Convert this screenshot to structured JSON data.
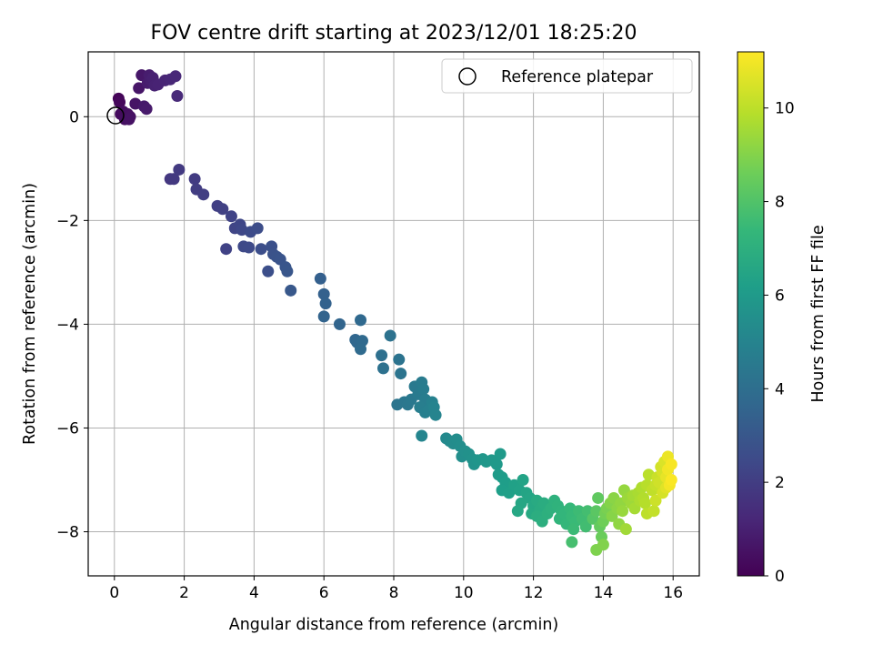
{
  "chart_data": {
    "type": "scatter",
    "title": "FOV centre drift starting at 2023/12/01 18:25:20",
    "xlabel": "Angular distance from reference (arcmin)",
    "ylabel": "Rotation from reference (arcmin)",
    "xlim": [
      -0.75,
      16.75
    ],
    "ylim": [
      -8.85,
      1.25
    ],
    "xticks": [
      0,
      2,
      4,
      6,
      8,
      10,
      12,
      14,
      16
    ],
    "yticks": [
      -8,
      -6,
      -4,
      -2,
      0
    ],
    "grid": true,
    "legend": {
      "placement": "top-right",
      "entries": [
        {
          "label": "Reference platepar",
          "marker": "open-circle"
        }
      ]
    },
    "reference_point": {
      "x": 0,
      "y": 0
    },
    "colorbar": {
      "label": "Hours from first FF file",
      "range": [
        0,
        11.2
      ],
      "ticks": [
        0,
        2,
        4,
        6,
        8,
        10
      ],
      "colormap": "viridis",
      "colors": [
        "#440154",
        "#482878",
        "#3e4a89",
        "#31688e",
        "#26828e",
        "#1f9e89",
        "#35b779",
        "#6ece58",
        "#b5de2b",
        "#fde725"
      ]
    },
    "series": [
      {
        "color_by": "hours",
        "points": [
          [
            0.12,
            0.35,
            0.1
          ],
          [
            0.15,
            0.28,
            0.2
          ],
          [
            0.18,
            0.05,
            0.3
          ],
          [
            0.25,
            0.1,
            0.35
          ],
          [
            0.3,
            -0.05,
            0.4
          ],
          [
            0.38,
            0.05,
            0.45
          ],
          [
            0.45,
            0.0,
            0.5
          ],
          [
            0.42,
            -0.05,
            0.55
          ],
          [
            0.6,
            0.25,
            0.6
          ],
          [
            0.7,
            0.55,
            0.65
          ],
          [
            0.78,
            0.8,
            0.7
          ],
          [
            0.85,
            0.2,
            0.75
          ],
          [
            0.92,
            0.15,
            0.8
          ],
          [
            0.95,
            0.65,
            0.85
          ],
          [
            1.0,
            0.8,
            0.9
          ],
          [
            1.05,
            0.7,
            0.95
          ],
          [
            1.1,
            0.75,
            1.0
          ],
          [
            1.15,
            0.6,
            1.05
          ],
          [
            1.25,
            0.62,
            1.1
          ],
          [
            1.45,
            0.7,
            1.15
          ],
          [
            1.6,
            0.72,
            1.2
          ],
          [
            1.75,
            0.78,
            1.25
          ],
          [
            1.8,
            0.4,
            1.3
          ],
          [
            1.6,
            -1.2,
            1.8
          ],
          [
            1.7,
            -1.2,
            1.85
          ],
          [
            1.85,
            -1.02,
            1.9
          ],
          [
            2.3,
            -1.2,
            1.95
          ],
          [
            2.35,
            -1.4,
            2.0
          ],
          [
            2.55,
            -1.5,
            2.05
          ],
          [
            2.95,
            -1.72,
            2.1
          ],
          [
            3.1,
            -1.78,
            2.15
          ],
          [
            3.2,
            -2.55,
            2.2
          ],
          [
            3.35,
            -1.92,
            2.25
          ],
          [
            3.45,
            -2.15,
            2.3
          ],
          [
            3.6,
            -2.08,
            2.35
          ],
          [
            3.65,
            -2.18,
            2.4
          ],
          [
            3.7,
            -2.5,
            2.45
          ],
          [
            3.85,
            -2.52,
            2.5
          ],
          [
            3.9,
            -2.22,
            2.55
          ],
          [
            4.1,
            -2.15,
            2.6
          ],
          [
            4.2,
            -2.55,
            2.65
          ],
          [
            4.4,
            -2.98,
            2.7
          ],
          [
            4.5,
            -2.5,
            2.75
          ],
          [
            4.55,
            -2.65,
            2.8
          ],
          [
            4.65,
            -2.7,
            2.85
          ],
          [
            4.75,
            -2.75,
            2.9
          ],
          [
            4.9,
            -2.9,
            2.95
          ],
          [
            4.95,
            -2.98,
            3.0
          ],
          [
            5.05,
            -3.35,
            3.05
          ],
          [
            5.9,
            -3.12,
            3.4
          ],
          [
            6.0,
            -3.42,
            3.45
          ],
          [
            6.05,
            -3.6,
            3.5
          ],
          [
            6.0,
            -3.85,
            3.55
          ],
          [
            6.45,
            -4.0,
            3.6
          ],
          [
            6.9,
            -4.3,
            3.7
          ],
          [
            6.95,
            -4.35,
            3.75
          ],
          [
            7.05,
            -3.92,
            3.8
          ],
          [
            7.1,
            -4.32,
            3.85
          ],
          [
            7.05,
            -4.48,
            3.9
          ],
          [
            7.65,
            -4.6,
            4.1
          ],
          [
            7.7,
            -4.85,
            4.15
          ],
          [
            7.9,
            -4.22,
            4.2
          ],
          [
            8.15,
            -4.68,
            4.25
          ],
          [
            8.2,
            -4.95,
            4.3
          ],
          [
            8.1,
            -5.55,
            4.35
          ],
          [
            8.3,
            -5.5,
            4.4
          ],
          [
            8.4,
            -5.55,
            4.45
          ],
          [
            8.5,
            -5.45,
            4.5
          ],
          [
            8.6,
            -5.2,
            4.55
          ],
          [
            8.7,
            -5.35,
            4.6
          ],
          [
            8.8,
            -5.12,
            4.65
          ],
          [
            8.85,
            -5.25,
            4.7
          ],
          [
            8.9,
            -5.45,
            4.75
          ],
          [
            8.75,
            -5.6,
            4.8
          ],
          [
            8.9,
            -5.7,
            4.85
          ],
          [
            9.0,
            -5.65,
            4.9
          ],
          [
            9.1,
            -5.5,
            4.95
          ],
          [
            9.15,
            -5.6,
            5.0
          ],
          [
            9.2,
            -5.75,
            5.05
          ],
          [
            8.8,
            -6.15,
            5.1
          ],
          [
            9.5,
            -6.2,
            5.3
          ],
          [
            9.6,
            -6.25,
            5.35
          ],
          [
            9.7,
            -6.3,
            5.4
          ],
          [
            9.8,
            -6.22,
            5.45
          ],
          [
            9.9,
            -6.35,
            5.5
          ],
          [
            9.95,
            -6.55,
            5.55
          ],
          [
            10.05,
            -6.45,
            5.6
          ],
          [
            10.15,
            -6.5,
            5.65
          ],
          [
            10.25,
            -6.6,
            5.7
          ],
          [
            10.3,
            -6.7,
            5.75
          ],
          [
            10.4,
            -6.62,
            5.8
          ],
          [
            10.55,
            -6.6,
            5.85
          ],
          [
            10.65,
            -6.65,
            5.9
          ],
          [
            10.8,
            -6.62,
            5.95
          ],
          [
            10.95,
            -6.7,
            6.0
          ],
          [
            11.05,
            -6.5,
            6.05
          ],
          [
            11.0,
            -6.9,
            6.1
          ],
          [
            11.1,
            -6.95,
            6.15
          ],
          [
            11.2,
            -7.05,
            6.2
          ],
          [
            11.1,
            -7.2,
            6.25
          ],
          [
            11.3,
            -7.25,
            6.3
          ],
          [
            11.45,
            -7.1,
            6.35
          ],
          [
            11.6,
            -7.2,
            6.4
          ],
          [
            11.7,
            -7.0,
            6.45
          ],
          [
            11.8,
            -7.25,
            6.5
          ],
          [
            11.9,
            -7.35,
            6.55
          ],
          [
            11.65,
            -7.45,
            6.6
          ],
          [
            11.55,
            -7.6,
            6.65
          ],
          [
            12.0,
            -7.5,
            6.7
          ],
          [
            11.95,
            -7.65,
            6.75
          ],
          [
            12.1,
            -7.4,
            6.8
          ],
          [
            12.2,
            -7.55,
            6.85
          ],
          [
            12.3,
            -7.45,
            6.9
          ],
          [
            12.1,
            -7.7,
            6.95
          ],
          [
            12.25,
            -7.8,
            7.0
          ],
          [
            12.4,
            -7.65,
            7.05
          ],
          [
            12.5,
            -7.55,
            7.1
          ],
          [
            12.6,
            -7.4,
            7.15
          ],
          [
            12.7,
            -7.5,
            7.2
          ],
          [
            12.8,
            -7.6,
            7.25
          ],
          [
            12.75,
            -7.75,
            7.3
          ],
          [
            12.9,
            -7.65,
            7.35
          ],
          [
            12.95,
            -7.85,
            7.4
          ],
          [
            13.05,
            -7.55,
            7.45
          ],
          [
            13.1,
            -7.7,
            7.5
          ],
          [
            13.2,
            -7.8,
            7.55
          ],
          [
            13.15,
            -7.95,
            7.6
          ],
          [
            13.3,
            -7.6,
            7.65
          ],
          [
            13.4,
            -7.75,
            7.7
          ],
          [
            13.5,
            -7.9,
            7.75
          ],
          [
            13.55,
            -7.6,
            7.8
          ],
          [
            13.1,
            -8.2,
            7.85
          ],
          [
            13.7,
            -7.75,
            8.2
          ],
          [
            13.8,
            -7.6,
            8.3
          ],
          [
            13.85,
            -7.35,
            8.4
          ],
          [
            13.9,
            -7.9,
            8.5
          ],
          [
            13.95,
            -8.1,
            8.6
          ],
          [
            14.0,
            -7.8,
            8.7
          ],
          [
            14.05,
            -7.65,
            8.8
          ],
          [
            14.1,
            -7.55,
            8.9
          ],
          [
            13.8,
            -8.35,
            9.0
          ],
          [
            14.0,
            -8.25,
            9.05
          ],
          [
            14.2,
            -7.45,
            9.1
          ],
          [
            14.25,
            -7.7,
            9.15
          ],
          [
            14.3,
            -7.35,
            9.2
          ],
          [
            14.4,
            -7.55,
            9.25
          ],
          [
            14.45,
            -7.85,
            9.3
          ],
          [
            14.5,
            -7.45,
            9.35
          ],
          [
            14.6,
            -7.2,
            9.4
          ],
          [
            14.55,
            -7.6,
            9.45
          ],
          [
            14.7,
            -7.35,
            9.5
          ],
          [
            14.8,
            -7.45,
            9.55
          ],
          [
            14.65,
            -7.95,
            9.6
          ],
          [
            14.85,
            -7.3,
            9.65
          ],
          [
            14.9,
            -7.55,
            9.7
          ],
          [
            15.0,
            -7.25,
            9.75
          ],
          [
            15.05,
            -7.4,
            9.8
          ],
          [
            15.1,
            -7.15,
            9.85
          ],
          [
            15.15,
            -7.35,
            9.9
          ],
          [
            15.2,
            -7.45,
            9.95
          ],
          [
            15.25,
            -7.1,
            10.0
          ],
          [
            15.3,
            -6.9,
            10.05
          ],
          [
            15.25,
            -7.65,
            10.1
          ],
          [
            15.4,
            -7.2,
            10.15
          ],
          [
            15.45,
            -7.6,
            10.2
          ],
          [
            15.5,
            -7.1,
            10.25
          ],
          [
            15.55,
            -6.95,
            10.3
          ],
          [
            15.5,
            -7.4,
            10.35
          ],
          [
            15.6,
            -7.05,
            10.4
          ],
          [
            15.65,
            -6.75,
            10.45
          ],
          [
            15.7,
            -7.25,
            10.5
          ],
          [
            15.7,
            -6.85,
            10.55
          ],
          [
            15.75,
            -6.65,
            10.6
          ],
          [
            15.8,
            -7.15,
            10.7
          ],
          [
            15.8,
            -6.95,
            10.8
          ],
          [
            15.85,
            -6.55,
            10.9
          ],
          [
            15.85,
            -6.8,
            11.0
          ],
          [
            15.9,
            -7.1,
            11.05
          ],
          [
            15.95,
            -6.7,
            11.1
          ],
          [
            15.95,
            -7.0,
            11.15
          ]
        ]
      }
    ]
  }
}
